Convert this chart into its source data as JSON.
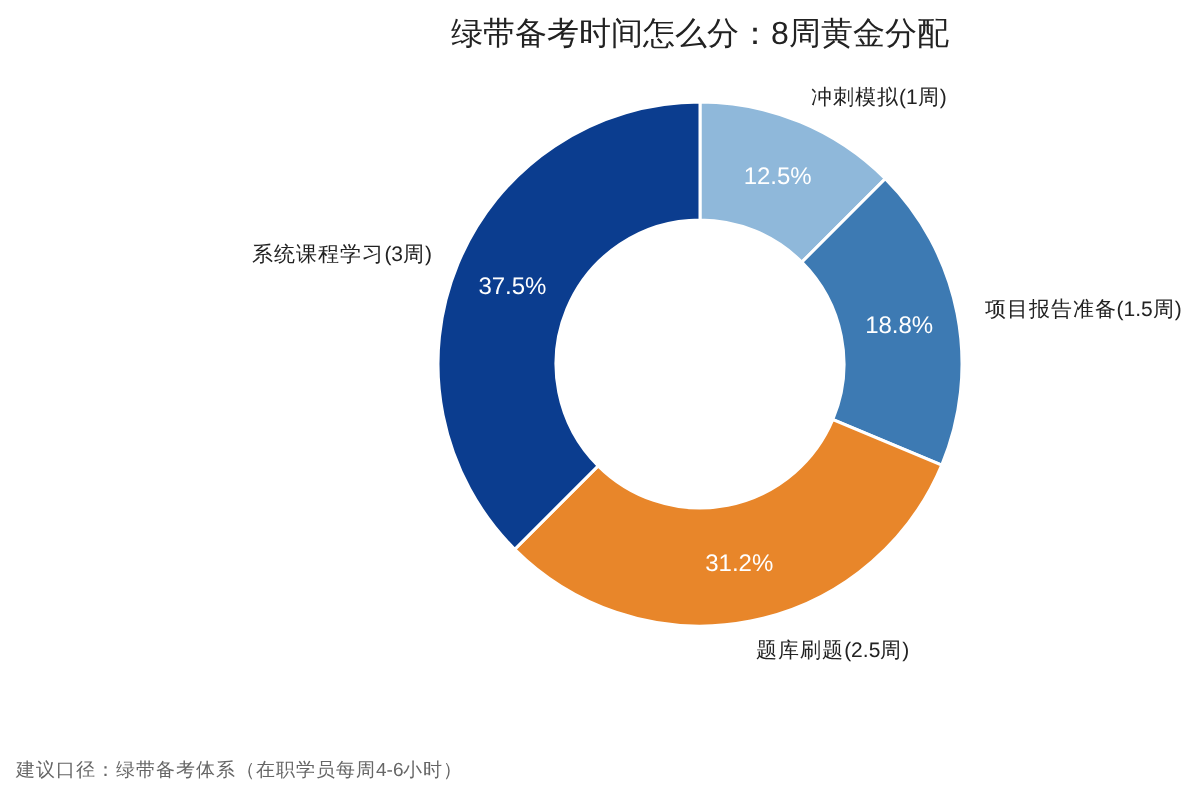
{
  "chart_data": {
    "type": "donut",
    "title": "绿带备考时间怎么分：8周黄金分配",
    "categories": [
      "冲刺模拟(1周)",
      "项目报告准备(1.5周)",
      "题库刷题(2.5周)",
      "系统课程学习(3周)"
    ],
    "values": [
      12.5,
      18.8,
      31.2,
      37.5
    ],
    "colors": [
      "#8fb8da",
      "#3d7ab3",
      "#e8862a",
      "#0b3d8f"
    ],
    "value_labels": [
      "12.5%",
      "18.8%",
      "31.2%",
      "37.5%"
    ],
    "annotations": [
      "建议口径：绿带备考体系（在职学员每周4-6小时）"
    ]
  }
}
